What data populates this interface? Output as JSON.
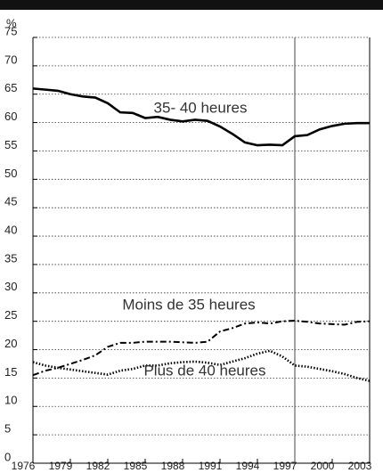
{
  "chart_data": {
    "type": "line",
    "y_label": "%",
    "x": [
      1976,
      1977,
      1978,
      1979,
      1980,
      1981,
      1982,
      1983,
      1984,
      1985,
      1986,
      1987,
      1988,
      1989,
      1990,
      1991,
      1992,
      1993,
      1994,
      1995,
      1996,
      1997,
      1998,
      1999,
      2000,
      2001,
      2002,
      2003
    ],
    "series": [
      {
        "name": "35- 40 heures",
        "color": "#000000",
        "values": [
          66,
          65.8,
          65.6,
          65.0,
          64.6,
          64.4,
          63.4,
          61.8,
          61.7,
          60.8,
          61.0,
          60.5,
          60.2,
          60.5,
          60.3,
          59.3,
          58.0,
          56.5,
          56.0,
          56.1,
          56.0,
          57.6,
          57.8,
          58.8,
          59.4,
          59.8,
          59.9,
          59.9
        ]
      },
      {
        "name": "Moins de 35 heures",
        "color": "#000000",
        "values": [
          15.5,
          16.3,
          16.8,
          17.5,
          18.2,
          19.0,
          20.5,
          21.2,
          21.2,
          21.4,
          21.4,
          21.4,
          21.3,
          21.2,
          21.4,
          23.2,
          23.8,
          24.6,
          24.8,
          24.6,
          25.0,
          25.1,
          24.9,
          24.6,
          24.5,
          24.4,
          24.9,
          25.0
        ]
      },
      {
        "name": "Plus de 40 heures",
        "color": "#000000",
        "values": [
          17.8,
          17.2,
          16.8,
          16.5,
          16.2,
          15.9,
          15.6,
          16.3,
          16.6,
          17.2,
          17.2,
          17.6,
          17.8,
          17.9,
          17.7,
          17.3,
          17.9,
          18.5,
          19.3,
          19.8,
          18.8,
          17.2,
          17.0,
          16.6,
          16.2,
          15.7,
          15.0,
          14.5
        ]
      }
    ],
    "xlim": [
      1976,
      2003
    ],
    "xticks": [
      1976,
      1979,
      1982,
      1985,
      1988,
      1991,
      1994,
      1997,
      2000,
      2003
    ],
    "ylim": [
      0,
      75
    ],
    "yticks": [
      0,
      5,
      10,
      15,
      20,
      25,
      30,
      35,
      40,
      45,
      50,
      55,
      60,
      65,
      70,
      75
    ],
    "vline": 1997,
    "grid": true
  }
}
